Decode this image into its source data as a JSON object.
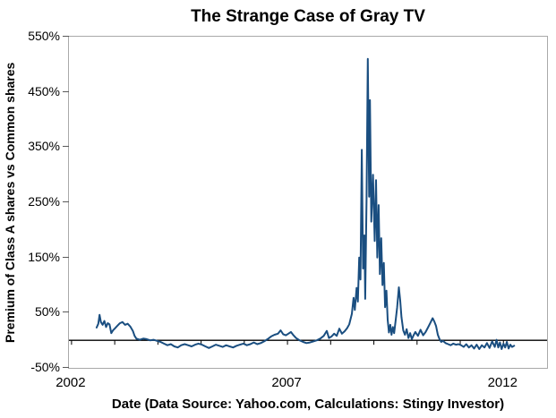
{
  "window": {
    "background": "#ffffff"
  },
  "chart_data": {
    "type": "line",
    "title": "The Strange Case of Gray TV",
    "xlabel": "Date (Data Source: Yahoo.com, Calculations: Stingy Investor)",
    "ylabel": "Premium of Class A shares vs Common shares",
    "xlim": [
      2001.94,
      2013.01
    ],
    "ylim": [
      -50,
      550
    ],
    "grid": false,
    "legend": "none",
    "line_color": "#1a4e80",
    "line_width": 2,
    "plot_border_color": "#a9a9a9",
    "tick_color": "#595959",
    "zero_line_color": "#000000",
    "zero_line_value": 0,
    "y_ticks": [
      {
        "value": 550,
        "label": "550%"
      },
      {
        "value": 450,
        "label": "450%"
      },
      {
        "value": 350,
        "label": "350%"
      },
      {
        "value": 250,
        "label": "250%"
      },
      {
        "value": 150,
        "label": "150%"
      },
      {
        "value": 50,
        "label": "50%"
      },
      {
        "value": -50,
        "label": "-50%"
      }
    ],
    "x_ticks": [
      {
        "value": 2002,
        "label": "2002"
      },
      {
        "value": 2003,
        "label": ""
      },
      {
        "value": 2004,
        "label": ""
      },
      {
        "value": 2005,
        "label": ""
      },
      {
        "value": 2006,
        "label": ""
      },
      {
        "value": 2007,
        "label": "2007"
      },
      {
        "value": 2008,
        "label": ""
      },
      {
        "value": 2009,
        "label": ""
      },
      {
        "value": 2010,
        "label": ""
      },
      {
        "value": 2011,
        "label": ""
      },
      {
        "value": 2012,
        "label": "2012"
      }
    ],
    "series": [
      {
        "name": "Premium of Class A shares vs Common shares (%)",
        "points": [
          [
            2002.58,
            23
          ],
          [
            2002.62,
            30
          ],
          [
            2002.65,
            46
          ],
          [
            2002.68,
            33
          ],
          [
            2002.72,
            28
          ],
          [
            2002.76,
            35
          ],
          [
            2002.8,
            24
          ],
          [
            2002.84,
            31
          ],
          [
            2002.88,
            29
          ],
          [
            2002.92,
            13
          ],
          [
            2002.96,
            18
          ],
          [
            2003.0,
            21
          ],
          [
            2003.06,
            26
          ],
          [
            2003.12,
            31
          ],
          [
            2003.18,
            33
          ],
          [
            2003.24,
            28
          ],
          [
            2003.3,
            30
          ],
          [
            2003.36,
            25
          ],
          [
            2003.42,
            17
          ],
          [
            2003.46,
            8
          ],
          [
            2003.5,
            3
          ],
          [
            2003.58,
            1
          ],
          [
            2003.66,
            3
          ],
          [
            2003.74,
            2
          ],
          [
            2003.82,
            0
          ],
          [
            2003.9,
            1
          ],
          [
            2003.98,
            -1
          ],
          [
            2004.06,
            -3
          ],
          [
            2004.14,
            -6
          ],
          [
            2004.22,
            -9
          ],
          [
            2004.3,
            -7
          ],
          [
            2004.38,
            -11
          ],
          [
            2004.46,
            -13
          ],
          [
            2004.54,
            -9
          ],
          [
            2004.62,
            -7
          ],
          [
            2004.7,
            -9
          ],
          [
            2004.78,
            -11
          ],
          [
            2004.86,
            -8
          ],
          [
            2004.94,
            -6
          ],
          [
            2005.02,
            -8
          ],
          [
            2005.1,
            -11
          ],
          [
            2005.18,
            -14
          ],
          [
            2005.26,
            -11
          ],
          [
            2005.34,
            -8
          ],
          [
            2005.42,
            -10
          ],
          [
            2005.5,
            -12
          ],
          [
            2005.58,
            -9
          ],
          [
            2005.66,
            -11
          ],
          [
            2005.74,
            -13
          ],
          [
            2005.82,
            -10
          ],
          [
            2005.9,
            -8
          ],
          [
            2005.98,
            -6
          ],
          [
            2006.06,
            -9
          ],
          [
            2006.14,
            -7
          ],
          [
            2006.22,
            -4
          ],
          [
            2006.3,
            -7
          ],
          [
            2006.38,
            -5
          ],
          [
            2006.46,
            -2
          ],
          [
            2006.54,
            2
          ],
          [
            2006.62,
            7
          ],
          [
            2006.7,
            10
          ],
          [
            2006.78,
            12
          ],
          [
            2006.84,
            18
          ],
          [
            2006.9,
            11
          ],
          [
            2006.96,
            9
          ],
          [
            2007.02,
            12
          ],
          [
            2007.08,
            15
          ],
          [
            2007.14,
            9
          ],
          [
            2007.2,
            4
          ],
          [
            2007.28,
            0
          ],
          [
            2007.36,
            -3
          ],
          [
            2007.44,
            -5
          ],
          [
            2007.52,
            -4
          ],
          [
            2007.6,
            -2
          ],
          [
            2007.68,
            0
          ],
          [
            2007.76,
            3
          ],
          [
            2007.84,
            8
          ],
          [
            2007.91,
            17
          ],
          [
            2007.96,
            4
          ],
          [
            2008.02,
            7
          ],
          [
            2008.08,
            12
          ],
          [
            2008.14,
            8
          ],
          [
            2008.2,
            21
          ],
          [
            2008.26,
            12
          ],
          [
            2008.32,
            16
          ],
          [
            2008.38,
            22
          ],
          [
            2008.43,
            29
          ],
          [
            2008.49,
            48
          ],
          [
            2008.53,
            77
          ],
          [
            2008.56,
            55
          ],
          [
            2008.6,
            95
          ],
          [
            2008.63,
            70
          ],
          [
            2008.66,
            150
          ],
          [
            2008.69,
            110
          ],
          [
            2008.72,
            345
          ],
          [
            2008.75,
            130
          ],
          [
            2008.78,
            190
          ],
          [
            2008.8,
            75
          ],
          [
            2008.83,
            255
          ],
          [
            2008.86,
            510
          ],
          [
            2008.89,
            260
          ],
          [
            2008.91,
            435
          ],
          [
            2008.94,
            215
          ],
          [
            2008.98,
            300
          ],
          [
            2009.02,
            180
          ],
          [
            2009.05,
            290
          ],
          [
            2009.08,
            150
          ],
          [
            2009.11,
            245
          ],
          [
            2009.14,
            120
          ],
          [
            2009.17,
            185
          ],
          [
            2009.2,
            100
          ],
          [
            2009.23,
            140
          ],
          [
            2009.26,
            60
          ],
          [
            2009.29,
            90
          ],
          [
            2009.32,
            37
          ],
          [
            2009.35,
            14
          ],
          [
            2009.38,
            28
          ],
          [
            2009.41,
            10
          ],
          [
            2009.44,
            24
          ],
          [
            2009.47,
            13
          ],
          [
            2009.5,
            33
          ],
          [
            2009.54,
            60
          ],
          [
            2009.58,
            96
          ],
          [
            2009.61,
            72
          ],
          [
            2009.64,
            42
          ],
          [
            2009.68,
            18
          ],
          [
            2009.72,
            10
          ],
          [
            2009.76,
            20
          ],
          [
            2009.8,
            4
          ],
          [
            2009.84,
            13
          ],
          [
            2009.88,
            2
          ],
          [
            2009.92,
            9
          ],
          [
            2009.96,
            15
          ],
          [
            2010.02,
            8
          ],
          [
            2010.08,
            19
          ],
          [
            2010.14,
            9
          ],
          [
            2010.2,
            15
          ],
          [
            2010.26,
            24
          ],
          [
            2010.31,
            32
          ],
          [
            2010.36,
            40
          ],
          [
            2010.4,
            34
          ],
          [
            2010.44,
            26
          ],
          [
            2010.48,
            10
          ],
          [
            2010.52,
            2
          ],
          [
            2010.56,
            -3
          ],
          [
            2010.6,
            -1
          ],
          [
            2010.66,
            -5
          ],
          [
            2010.72,
            -7
          ],
          [
            2010.78,
            -9
          ],
          [
            2010.84,
            -6
          ],
          [
            2010.9,
            -8
          ],
          [
            2010.96,
            -7
          ],
          [
            2011.02,
            -9
          ],
          [
            2011.08,
            -12
          ],
          [
            2011.14,
            -7
          ],
          [
            2011.2,
            -13
          ],
          [
            2011.26,
            -9
          ],
          [
            2011.32,
            -15
          ],
          [
            2011.38,
            -8
          ],
          [
            2011.44,
            -16
          ],
          [
            2011.5,
            -9
          ],
          [
            2011.56,
            -13
          ],
          [
            2011.62,
            -5
          ],
          [
            2011.68,
            -14
          ],
          [
            2011.74,
            -2
          ],
          [
            2011.8,
            -12
          ],
          [
            2011.84,
            1
          ],
          [
            2011.88,
            -13
          ],
          [
            2011.92,
            -4
          ],
          [
            2011.96,
            -16
          ],
          [
            2012.0,
            -6
          ],
          [
            2012.04,
            -13
          ],
          [
            2012.08,
            -3
          ],
          [
            2012.12,
            -15
          ],
          [
            2012.16,
            -8
          ],
          [
            2012.2,
            -12
          ],
          [
            2012.25,
            -10
          ]
        ]
      }
    ]
  }
}
